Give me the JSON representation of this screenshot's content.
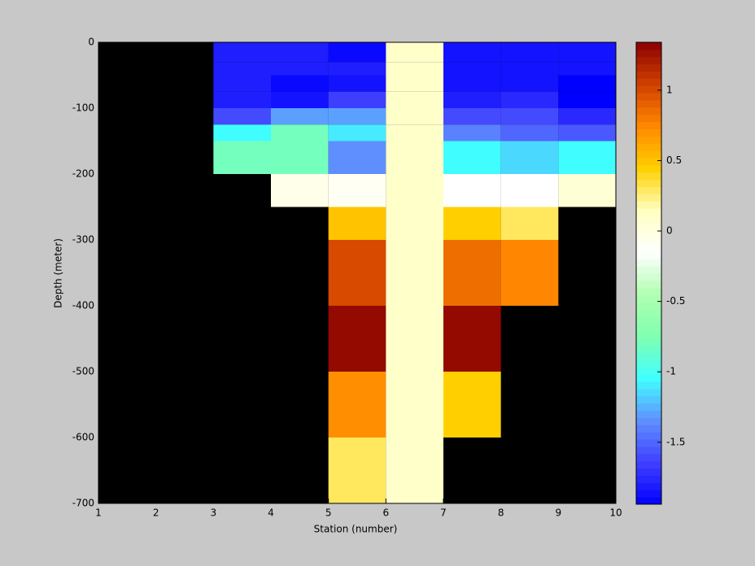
{
  "chart_data": {
    "type": "heatmap",
    "xlabel": "Station (number)",
    "ylabel": "Depth (meter)",
    "x": [
      1,
      2,
      3,
      4,
      5,
      6,
      7,
      8,
      9,
      10
    ],
    "y": [
      0,
      -30,
      -50,
      -75,
      -100,
      -125,
      -150,
      -200,
      -250,
      -300,
      -350,
      -400,
      -500,
      -600,
      -700
    ],
    "z": [
      [
        null,
        null,
        -1.8,
        -1.8,
        -1.9,
        0.1,
        -1.85,
        -1.85,
        -1.85
      ],
      [
        null,
        null,
        -1.8,
        -1.8,
        -1.8,
        0.1,
        -1.85,
        -1.85,
        -1.85
      ],
      [
        null,
        null,
        -1.8,
        -1.9,
        -1.85,
        0.1,
        -1.85,
        -1.85,
        -1.95
      ],
      [
        null,
        null,
        -1.8,
        -1.85,
        -1.65,
        0.1,
        -1.8,
        -1.75,
        -1.95
      ],
      [
        null,
        null,
        -1.6,
        -1.3,
        -1.3,
        0.1,
        -1.6,
        -1.6,
        -1.75
      ],
      [
        null,
        null,
        -1.05,
        -0.8,
        -1.1,
        0.1,
        -1.4,
        -1.5,
        -1.55
      ],
      [
        null,
        null,
        -0.8,
        -0.8,
        -1.35,
        0.1,
        -1.05,
        -1.15,
        -1.05
      ],
      [
        null,
        null,
        null,
        -0.05,
        -0.1,
        0.1,
        -0.15,
        -0.15,
        0.05
      ],
      [
        null,
        null,
        null,
        null,
        0.5,
        0.1,
        0.45,
        0.3,
        null
      ],
      [
        null,
        null,
        null,
        null,
        1.0,
        0.1,
        0.85,
        0.75,
        null
      ],
      [
        null,
        null,
        null,
        null,
        1.0,
        0.1,
        0.85,
        0.75,
        null
      ],
      [
        null,
        null,
        null,
        null,
        1.3,
        0.1,
        1.3,
        null,
        null
      ],
      [
        null,
        null,
        null,
        null,
        0.72,
        0.1,
        0.45,
        null,
        null
      ],
      [
        null,
        null,
        null,
        null,
        0.3,
        0.1,
        null,
        null,
        null
      ]
    ],
    "xlim": [
      1,
      10
    ],
    "xticks": [
      1,
      2,
      3,
      4,
      5,
      6,
      7,
      8,
      9,
      10
    ],
    "ylim": [
      -700,
      0
    ],
    "yticks": [
      0,
      -100,
      -200,
      -300,
      -400,
      -500,
      -600,
      -700
    ],
    "clim": [
      -1.94,
      1.34
    ],
    "cticks": [
      -1.5,
      -1,
      -0.5,
      0,
      0.5,
      1
    ],
    "colormap": [
      "#0000ff",
      "#4040ff",
      "#6090ff",
      "#40ffff",
      "#80ffb0",
      "#b0ffb0",
      "#ffffff",
      "#ffffc0",
      "#ffd000",
      "#ff8800",
      "#d04000",
      "#8b0000"
    ],
    "background": "#000000"
  }
}
